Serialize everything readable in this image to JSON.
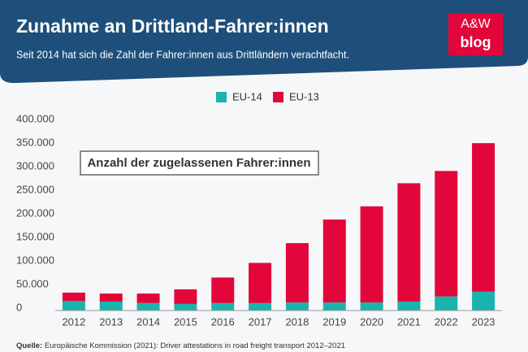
{
  "chart_data": {
    "type": "stacked-bar",
    "title": "Zunahme an Drittland-Fahrer:innen",
    "subtitle": "Seit 2014 hat sich die Zahl der Fahrer:innen aus Drittländern verachtfacht.",
    "logo": {
      "top": "A&W",
      "bottom": "blog"
    },
    "annotation": "Anzahl der zugelassenen Fahrer:innen",
    "source_label": "Quelle:",
    "source": "Europäische Kommission (2021): Driver attestations in road freight transport 2012–2021",
    "categories": [
      "2012",
      "2013",
      "2014",
      "2015",
      "2016",
      "2017",
      "2018",
      "2019",
      "2020",
      "2021",
      "2022",
      "2023"
    ],
    "series": [
      {
        "name": "EU-14",
        "color": "#1bb3ad",
        "values": [
          20000,
          19000,
          16000,
          14000,
          16000,
          16000,
          17000,
          17000,
          17000,
          19000,
          30000,
          40000
        ]
      },
      {
        "name": "EU-13",
        "color": "#e3063b",
        "values": [
          18000,
          17000,
          20000,
          31000,
          54000,
          85000,
          126000,
          176000,
          204000,
          251000,
          266000,
          315000
        ]
      }
    ],
    "ylim": [
      0,
      400000
    ],
    "yticks": [
      0,
      {
        "value": 50000,
        "label": "50.000"
      },
      {
        "value": 100000,
        "label": "100.000"
      },
      {
        "value": 150000,
        "label": "150.000"
      },
      {
        "value": 200000,
        "label": "200.000"
      },
      {
        "value": 250000,
        "label": "250.000"
      },
      {
        "value": 300000,
        "label": "300.000"
      },
      {
        "value": 350000,
        "label": "350.000"
      },
      {
        "value": 400000,
        "label": "400.000"
      }
    ],
    "grid": false,
    "legend": "top"
  }
}
